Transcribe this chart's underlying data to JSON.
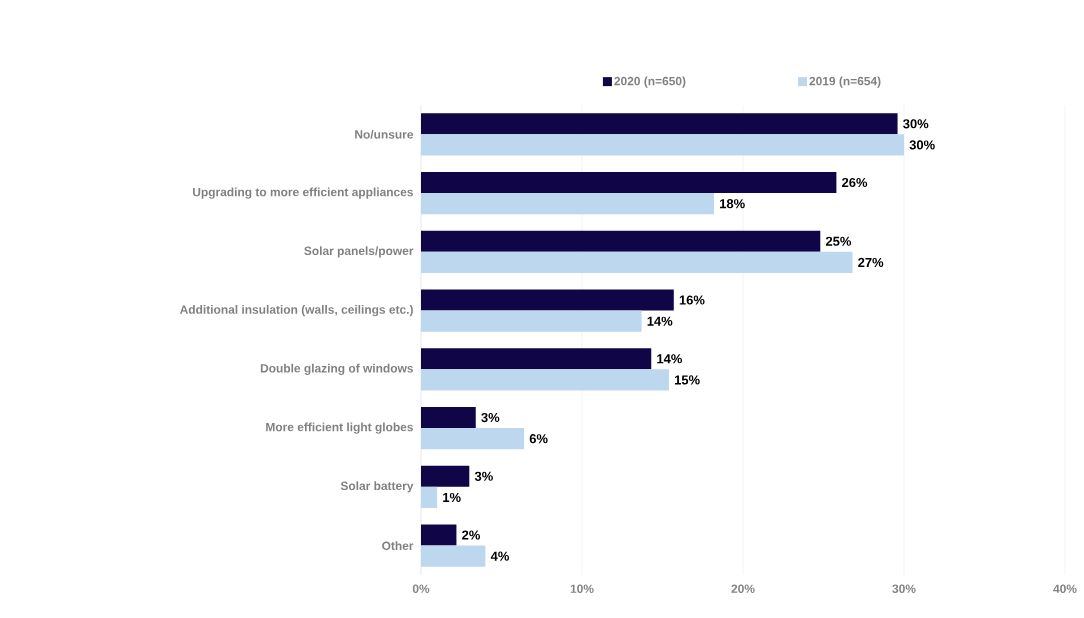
{
  "chart_data": {
    "type": "bar",
    "orientation": "horizontal",
    "categories": [
      "No/unsure",
      "Upgrading to more efficient appliances",
      "Solar panels/power",
      "Additional insulation (walls, ceilings etc.)",
      "Double glazing of windows",
      "More efficient light globes",
      "Solar battery",
      "Other"
    ],
    "series": [
      {
        "name": "2020 (n=650)",
        "color": "#0f0547",
        "values": [
          29.6,
          25.8,
          24.8,
          15.7,
          14.3,
          3.4,
          3.0,
          2.2
        ],
        "value_labels": [
          "30%",
          "26%",
          "25%",
          "16%",
          "14%",
          "3%",
          "3%",
          "2%"
        ]
      },
      {
        "name": "2019 (n=654)",
        "color": "#bdd7ee",
        "values": [
          30.0,
          18.2,
          26.8,
          13.7,
          15.4,
          6.4,
          1.0,
          4.0
        ],
        "value_labels": [
          "30%",
          "18%",
          "27%",
          "14%",
          "15%",
          "6%",
          "1%",
          "4%"
        ]
      }
    ],
    "xlim": [
      0,
      40
    ],
    "xticks": [
      {
        "value": 0,
        "label": "0%"
      },
      {
        "value": 10,
        "label": "10%"
      },
      {
        "value": 20,
        "label": "20%"
      },
      {
        "value": 30,
        "label": "30%"
      },
      {
        "value": 40,
        "label": "40%"
      }
    ],
    "grid": "x",
    "legend": "top"
  }
}
